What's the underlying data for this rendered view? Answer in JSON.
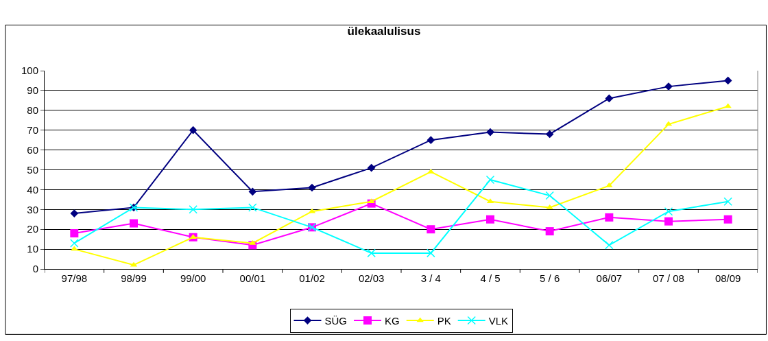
{
  "chart_data": {
    "type": "line",
    "title": "ülekaalulisus",
    "categories": [
      "97/98",
      "98/99",
      "99/00",
      "00/01",
      "01/02",
      "02/03",
      "3 / 4",
      "4 / 5",
      "5 / 6",
      "06/07",
      "07 / 08",
      "08/09"
    ],
    "series": [
      {
        "name": "SÜG",
        "color": "#000080",
        "marker": "diamond",
        "values": [
          28,
          31,
          70,
          39,
          41,
          51,
          65,
          69,
          68,
          86,
          92,
          95
        ]
      },
      {
        "name": "KG",
        "color": "#ff00ff",
        "marker": "square",
        "values": [
          18,
          23,
          16,
          12,
          21,
          33,
          20,
          25,
          19,
          26,
          24,
          25
        ]
      },
      {
        "name": "PK",
        "color": "#ffff00",
        "marker": "triangle",
        "values": [
          10,
          2,
          16,
          13,
          29,
          34,
          49,
          34,
          31,
          42,
          73,
          82
        ]
      },
      {
        "name": "VLK",
        "color": "#00ffff",
        "marker": "cross",
        "values": [
          13,
          31,
          30,
          31,
          21,
          8,
          8,
          45,
          37,
          12,
          29,
          34
        ]
      }
    ],
    "ylim": [
      0,
      100
    ],
    "yticks": [
      0,
      10,
      20,
      30,
      40,
      50,
      60,
      70,
      80,
      90,
      100
    ],
    "grid": "y",
    "legend": "bottom",
    "line_style": "solid"
  }
}
